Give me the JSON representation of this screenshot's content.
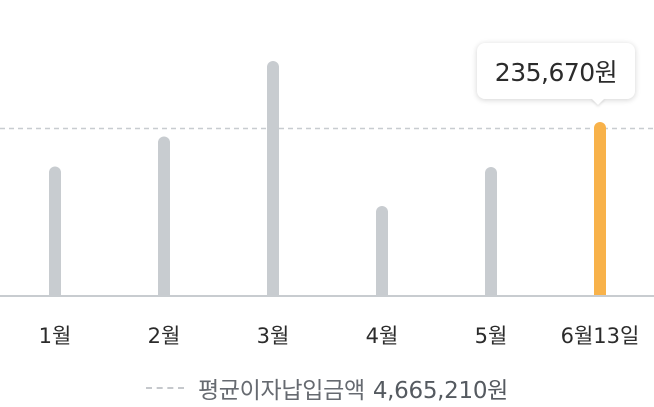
{
  "chart_data": {
    "type": "bar",
    "categories": [
      "1월",
      "2월",
      "3월",
      "4월",
      "5월",
      "6월13일"
    ],
    "values": [
      257000,
      317000,
      468000,
      178000,
      256000,
      346000
    ],
    "ylim": [
      0,
      510000
    ],
    "average": 333000,
    "highlighted_index": 5,
    "tooltip": "235,670원",
    "legend": {
      "label": "평균이자납입금액",
      "value": "4,665,210원"
    },
    "colors": {
      "bar": "#c8ccd0",
      "highlight": "#f8b24a",
      "axis": "#c8ccd0",
      "average_line": "#c8ccd0",
      "tick_text": "#2b2b2b"
    }
  }
}
